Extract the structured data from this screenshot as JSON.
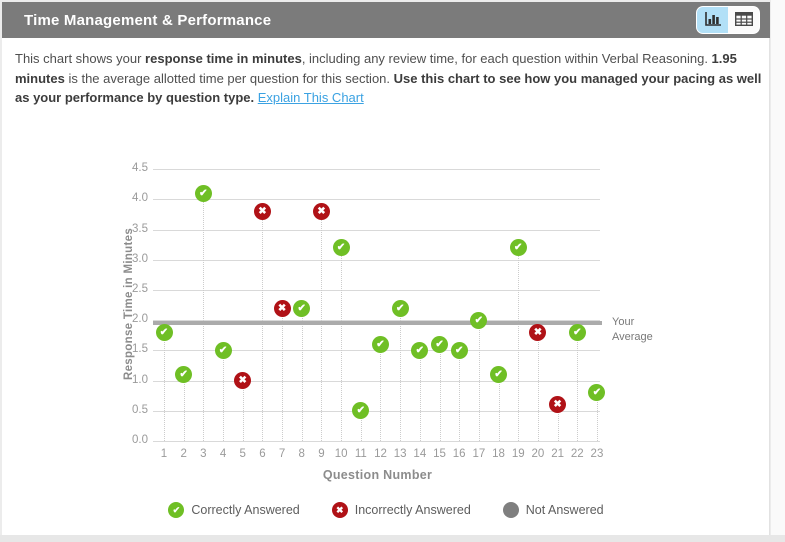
{
  "header": {
    "collapse_icon": "minus",
    "title": "Time Management & Performance",
    "view_toggle": {
      "chart_button": "bar-chart-view",
      "table_button": "table-view",
      "active": "chart"
    }
  },
  "description": {
    "segments": [
      {
        "text": "This chart shows your ",
        "style": "normal"
      },
      {
        "text": "response time in minutes",
        "style": "bold"
      },
      {
        "text": ", including any review time, for each question within Verbal Reasoning. ",
        "style": "normal"
      },
      {
        "text": "1.95 minutes",
        "style": "bold"
      },
      {
        "text": " is the average allotted time per question for this section. ",
        "style": "normal"
      },
      {
        "text": "Use this chart to see how you managed your pacing as well as your performance by question type.",
        "style": "bold"
      },
      {
        "text": " ",
        "style": "normal"
      },
      {
        "text": "Explain This Chart",
        "style": "link"
      }
    ]
  },
  "chart_data": {
    "type": "scatter",
    "title": "Time Management & Performance",
    "xlabel": "Question Number",
    "ylabel": "Response Time in Minutes",
    "xlim": [
      1,
      23
    ],
    "ylim": [
      0,
      4.5
    ],
    "ytick_step": 0.5,
    "grid": true,
    "x": [
      1,
      2,
      3,
      4,
      5,
      6,
      7,
      8,
      9,
      10,
      11,
      12,
      13,
      14,
      15,
      16,
      17,
      18,
      19,
      20,
      21,
      22,
      23
    ],
    "points": [
      {
        "question": 1,
        "minutes": 1.8,
        "status": "correct"
      },
      {
        "question": 2,
        "minutes": 1.1,
        "status": "correct"
      },
      {
        "question": 3,
        "minutes": 4.1,
        "status": "correct"
      },
      {
        "question": 4,
        "minutes": 1.5,
        "status": "correct"
      },
      {
        "question": 5,
        "minutes": 1.0,
        "status": "incorrect"
      },
      {
        "question": 6,
        "minutes": 3.8,
        "status": "incorrect"
      },
      {
        "question": 7,
        "minutes": 2.2,
        "status": "incorrect"
      },
      {
        "question": 8,
        "minutes": 2.2,
        "status": "correct"
      },
      {
        "question": 9,
        "minutes": 3.8,
        "status": "incorrect"
      },
      {
        "question": 10,
        "minutes": 3.2,
        "status": "correct"
      },
      {
        "question": 11,
        "minutes": 0.5,
        "status": "correct"
      },
      {
        "question": 12,
        "minutes": 1.6,
        "status": "correct"
      },
      {
        "question": 13,
        "minutes": 2.2,
        "status": "correct"
      },
      {
        "question": 14,
        "minutes": 1.5,
        "status": "correct"
      },
      {
        "question": 15,
        "minutes": 1.6,
        "status": "correct"
      },
      {
        "question": 16,
        "minutes": 1.5,
        "status": "correct"
      },
      {
        "question": 17,
        "minutes": 2.0,
        "status": "correct"
      },
      {
        "question": 18,
        "minutes": 1.1,
        "status": "correct"
      },
      {
        "question": 19,
        "minutes": 3.2,
        "status": "correct"
      },
      {
        "question": 20,
        "minutes": 1.8,
        "status": "incorrect"
      },
      {
        "question": 21,
        "minutes": 0.6,
        "status": "incorrect"
      },
      {
        "question": 22,
        "minutes": 1.8,
        "status": "correct"
      },
      {
        "question": 23,
        "minutes": 0.8,
        "status": "correct"
      }
    ],
    "average_line": {
      "value": 1.95,
      "label": "Your Average"
    },
    "legend": [
      {
        "label": "Correctly Answered",
        "status": "correct"
      },
      {
        "label": "Incorrectly Answered",
        "status": "incorrect"
      },
      {
        "label": "Not Answered",
        "status": "not_answered"
      }
    ],
    "legend_position": "bottom"
  },
  "icons": {
    "correct": "✔",
    "incorrect": "✖",
    "not_answered": ""
  },
  "colors": {
    "correct": "#6fbf25",
    "incorrect": "#b01217",
    "not_answered": "#7f7f7f",
    "average_line": "#ababab",
    "header_bg": "#7b7b7b",
    "active_toggle_bg": "#b2e0f7",
    "link": "#3ba2e2"
  }
}
